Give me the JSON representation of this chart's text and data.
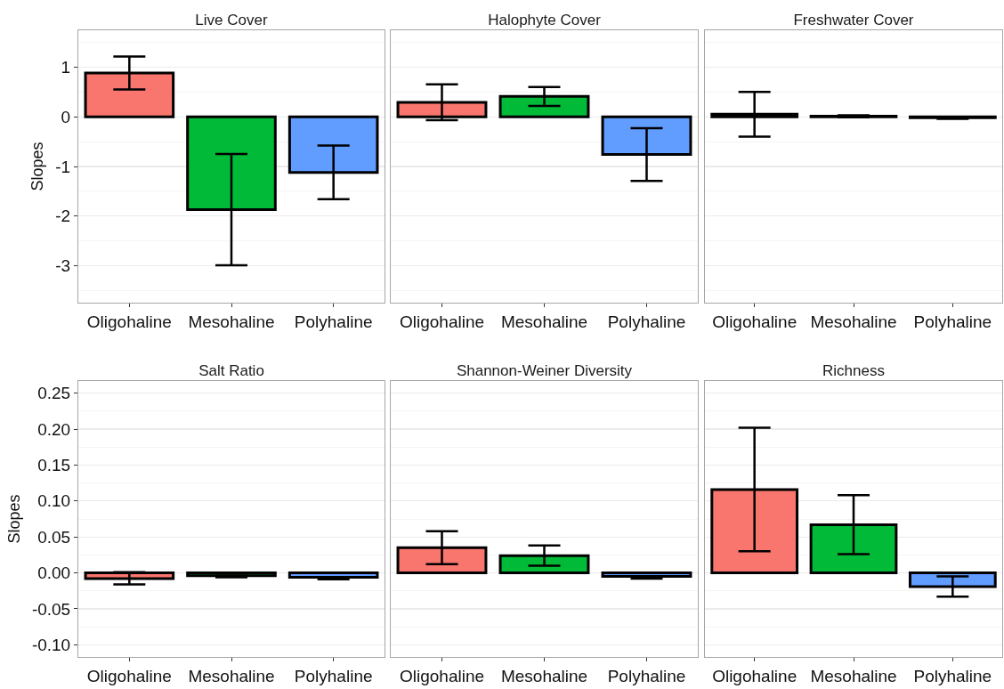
{
  "chart_data": [
    {
      "type": "bar",
      "title": "Live Cover",
      "ylabel": "Slopes",
      "categories": [
        "Oligohaline",
        "Mesohaline",
        "Polyhaline"
      ],
      "values": [
        0.88,
        -1.87,
        -1.12
      ],
      "errors": [
        [
          0.55,
          1.21
        ],
        [
          -2.99,
          -0.75
        ],
        [
          -1.66,
          -0.58
        ]
      ],
      "colors": [
        "#f8766d",
        "#00ba38",
        "#619cff"
      ],
      "ylim": [
        -3.74,
        1.74
      ],
      "yticks": [
        -3,
        -2,
        -1,
        0,
        1
      ],
      "grid": "y"
    },
    {
      "type": "bar",
      "title": "Halophyte Cover",
      "categories": [
        "Oligohaline",
        "Mesohaline",
        "Polyhaline"
      ],
      "values": [
        0.29,
        0.41,
        -0.76
      ],
      "errors": [
        [
          -0.07,
          0.65
        ],
        [
          0.22,
          0.6
        ],
        [
          -1.29,
          -0.23
        ]
      ],
      "colors": [
        "#f8766d",
        "#00ba38",
        "#619cff"
      ],
      "ylim": [
        -3.74,
        1.74
      ],
      "yticks": [
        -3,
        -2,
        -1,
        0,
        1
      ],
      "grid": "y",
      "tick_labels": "x"
    },
    {
      "type": "bar",
      "title": "Freshwater Cover",
      "categories": [
        "Oligohaline",
        "Mesohaline",
        "Polyhaline"
      ],
      "values": [
        0.05,
        0.01,
        -0.02
      ],
      "errors": [
        [
          -0.4,
          0.5
        ],
        [
          -0.01,
          0.03
        ],
        [
          -0.04,
          0.0
        ]
      ],
      "colors": [
        "#f8766d",
        "#00ba38",
        "#619cff"
      ],
      "ylim": [
        -3.74,
        1.74
      ],
      "yticks": [
        -3,
        -2,
        -1,
        0,
        1
      ],
      "grid": "y",
      "tick_labels": "x"
    },
    {
      "type": "bar",
      "title": "Salt Ratio",
      "ylabel": "Slopes",
      "categories": [
        "Oligohaline",
        "Mesohaline",
        "Polyhaline"
      ],
      "values": [
        -0.008,
        -0.004,
        -0.006
      ],
      "errors": [
        [
          -0.016,
          0.001
        ],
        [
          -0.006,
          -0.004
        ],
        [
          -0.009,
          -0.006
        ]
      ],
      "colors": [
        "#f8766d",
        "#00ba38",
        "#619cff"
      ],
      "ylim": [
        -0.117,
        0.267
      ],
      "yticks": [
        {
          "value": -0.1,
          "label": "-0.10"
        },
        -0.05,
        {
          "value": 0,
          "label": "0.00"
        },
        0.05,
        {
          "value": 0.1,
          "label": "0.10"
        },
        0.15,
        {
          "value": 0.2,
          "label": "0.20"
        },
        0.25
      ],
      "grid": "y"
    },
    {
      "type": "bar",
      "title": "Shannon-Weiner Diversity",
      "categories": [
        "Oligohaline",
        "Mesohaline",
        "Polyhaline"
      ],
      "values": [
        0.035,
        0.024,
        -0.005
      ],
      "errors": [
        [
          0.012,
          0.058
        ],
        [
          0.01,
          0.038
        ],
        [
          -0.008,
          -0.005
        ]
      ],
      "colors": [
        "#f8766d",
        "#00ba38",
        "#619cff"
      ],
      "ylim": [
        -0.117,
        0.267
      ],
      "yticks": [
        -0.1,
        -0.05,
        0,
        0.05,
        0.1,
        0.15,
        0.2,
        0.25
      ],
      "grid": "y",
      "tick_labels": "x"
    },
    {
      "type": "bar",
      "title": "Richness",
      "categories": [
        "Oligohaline",
        "Mesohaline",
        "Polyhaline"
      ],
      "values": [
        0.116,
        0.067,
        -0.019
      ],
      "errors": [
        [
          0.03,
          0.202
        ],
        [
          0.026,
          0.108
        ],
        [
          -0.033,
          -0.005
        ]
      ],
      "colors": [
        "#f8766d",
        "#00ba38",
        "#619cff"
      ],
      "ylim": [
        -0.117,
        0.267
      ],
      "yticks": [
        -0.1,
        -0.05,
        0,
        0.05,
        0.1,
        0.15,
        0.2,
        0.25
      ],
      "grid": "y",
      "tick_labels": "x"
    }
  ]
}
